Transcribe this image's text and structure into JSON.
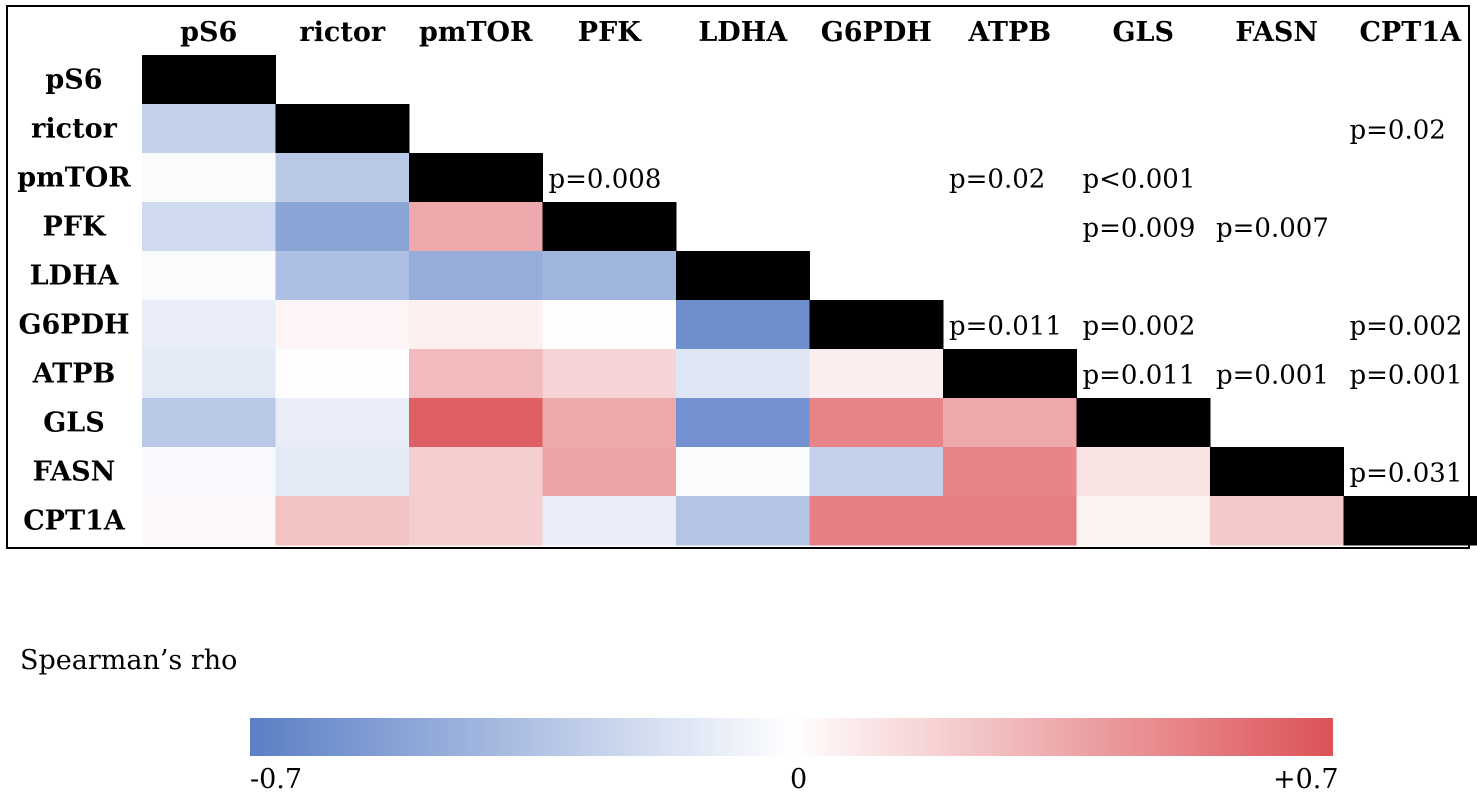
{
  "chart_data": {
    "type": "heatmap",
    "title": "",
    "labels": [
      "pS6",
      "rictor",
      "pmTOR",
      "PFK",
      "LDHA",
      "G6PDH",
      "ATPB",
      "GLS",
      "FASN",
      "CPT1A"
    ],
    "lower_triangle_rho": [
      [],
      [
        -0.25
      ],
      [
        -0.02,
        -0.3
      ],
      [
        -0.2,
        -0.5,
        0.35
      ],
      [
        -0.02,
        -0.35,
        -0.45,
        -0.4
      ],
      [
        -0.1,
        0.04,
        0.06,
        -0.01,
        -0.62
      ],
      [
        -0.12,
        -0.01,
        0.28,
        0.18,
        -0.14,
        0.07
      ],
      [
        -0.3,
        -0.1,
        0.65,
        0.35,
        -0.6,
        0.5,
        0.35
      ],
      [
        -0.03,
        -0.12,
        0.2,
        0.37,
        -0.02,
        -0.25,
        0.5,
        0.12
      ],
      [
        0.03,
        0.25,
        0.2,
        -0.1,
        -0.32,
        0.52,
        0.52,
        0.05,
        0.22
      ]
    ],
    "p_values": [
      {
        "row": "rictor",
        "col": "CPT1A",
        "text": "p=0.02"
      },
      {
        "row": "pmTOR",
        "col": "PFK",
        "text": "p=0.008"
      },
      {
        "row": "pmTOR",
        "col": "ATPB",
        "text": "p=0.02"
      },
      {
        "row": "pmTOR",
        "col": "GLS",
        "text": "p<0.001"
      },
      {
        "row": "PFK",
        "col": "GLS",
        "text": "p=0.009"
      },
      {
        "row": "PFK",
        "col": "FASN",
        "text": "p=0.007"
      },
      {
        "row": "G6PDH",
        "col": "ATPB",
        "text": "p=0.011"
      },
      {
        "row": "G6PDH",
        "col": "GLS",
        "text": "p=0.002"
      },
      {
        "row": "G6PDH",
        "col": "CPT1A",
        "text": "p=0.002"
      },
      {
        "row": "ATPB",
        "col": "GLS",
        "text": "p=0.011"
      },
      {
        "row": "ATPB",
        "col": "FASN",
        "text": "p=0.001"
      },
      {
        "row": "ATPB",
        "col": "CPT1A",
        "text": "p=0.001"
      },
      {
        "row": "FASN",
        "col": "CPT1A",
        "text": "p=0.031"
      }
    ],
    "diagonal_color": "#000000",
    "colorscale": {
      "title": "Spearman’s rho",
      "min": -0.7,
      "max": 0.7,
      "tick_labels": [
        "-0.7",
        "0",
        "+0.7"
      ],
      "min_color": "#5b7fc6",
      "mid_color": "#ffffff",
      "max_color": "#dc5358"
    }
  }
}
